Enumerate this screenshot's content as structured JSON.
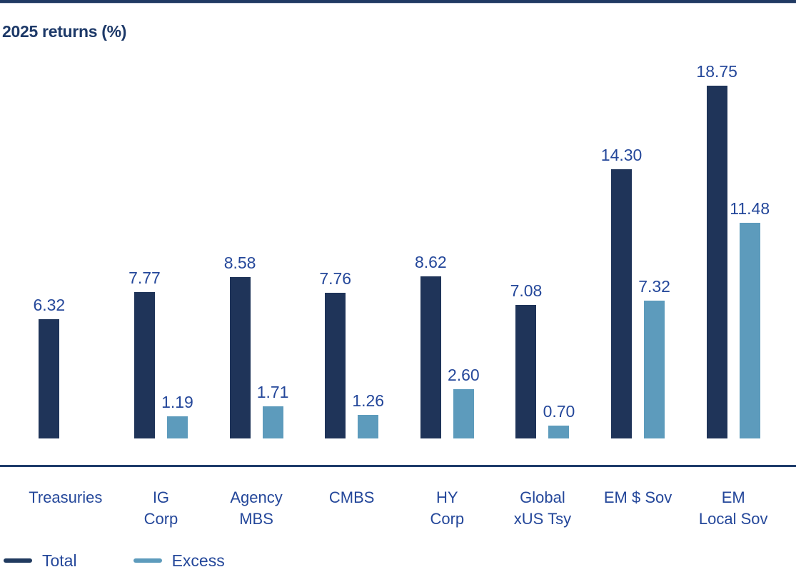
{
  "title": "2025 returns (%)",
  "colors": {
    "total_bar": "#1f3459",
    "excess_bar": "#5d9bbc",
    "title_text": "#1d3968",
    "label_text": "#24479a",
    "axis_line": "#1f3c6b",
    "top_divider": "#213a63"
  },
  "chart_data": {
    "type": "bar",
    "title": "2025 returns (%)",
    "categories": [
      "Treasuries",
      "IG Corp",
      "Agency MBS",
      "CMBS",
      "HY Corp",
      "Global xUS Tsy",
      "EM $ Sov",
      "EM Local Sov"
    ],
    "categories_wrapped": [
      {
        "line1": "Treasuries",
        "line2": ""
      },
      {
        "line1": "IG",
        "line2": "Corp"
      },
      {
        "line1": "Agency",
        "line2": "MBS"
      },
      {
        "line1": "CMBS",
        "line2": ""
      },
      {
        "line1": "HY",
        "line2": "Corp"
      },
      {
        "line1": "Global",
        "line2": "xUS Tsy"
      },
      {
        "line1": "EM $ Sov",
        "line2": ""
      },
      {
        "line1": "EM",
        "line2": "Local Sov"
      }
    ],
    "series": [
      {
        "name": "Total",
        "color": "#1f3459",
        "values": [
          6.32,
          7.77,
          8.58,
          7.76,
          8.62,
          7.08,
          14.3,
          18.75
        ],
        "labels": [
          "6.32",
          "7.77",
          "8.58",
          "7.76",
          "8.62",
          "7.08",
          "14.30",
          "18.75"
        ]
      },
      {
        "name": "Excess",
        "color": "#5d9bbc",
        "values": [
          null,
          1.19,
          1.71,
          1.26,
          2.6,
          0.7,
          7.32,
          11.48
        ],
        "labels": [
          "",
          "1.19",
          "1.71",
          "1.26",
          "2.60",
          "0.70",
          "7.32",
          "11.48"
        ]
      }
    ],
    "ylim": [
      0,
      18.75
    ],
    "grid": false,
    "value_labels": true,
    "legend_position": "bottom-left"
  },
  "legend": {
    "items": [
      {
        "label": "Total",
        "color": "#203a5f"
      },
      {
        "label": "Excess",
        "color": "#5d9bbc"
      }
    ]
  }
}
